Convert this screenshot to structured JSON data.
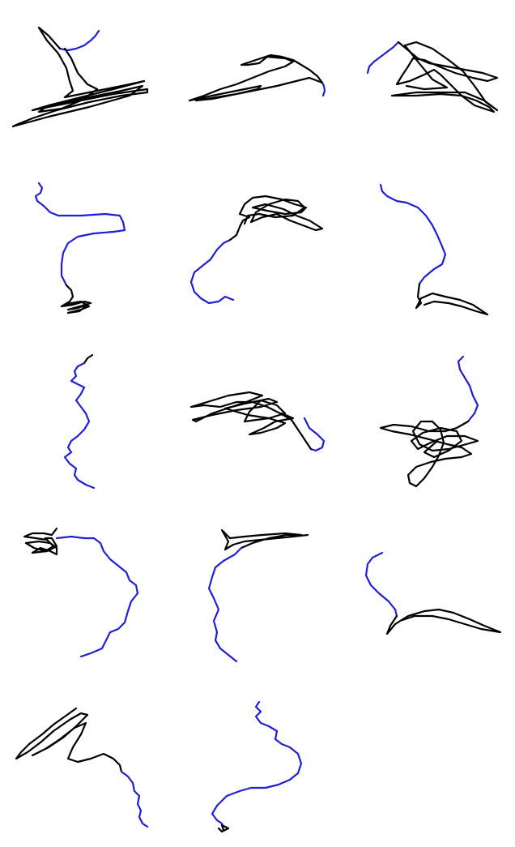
{
  "colors": {
    "background": "#ffffff",
    "trail_primary": "#1f1fd6",
    "trail_secondary": "#000000"
  },
  "grid": {
    "rows": 5,
    "columns": 3,
    "panel_count": 14
  },
  "panels": [
    {
      "id": 1
    },
    {
      "id": 2
    },
    {
      "id": 3
    },
    {
      "id": 4
    },
    {
      "id": 5
    },
    {
      "id": 6
    },
    {
      "id": 7
    },
    {
      "id": 8
    },
    {
      "id": 9
    },
    {
      "id": 10
    },
    {
      "id": 11
    },
    {
      "id": 12
    },
    {
      "id": 13
    },
    {
      "id": 14
    }
  ]
}
